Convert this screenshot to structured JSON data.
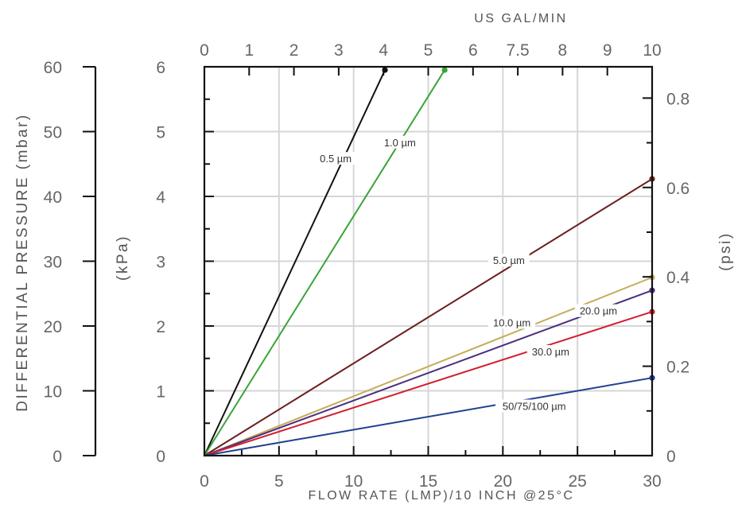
{
  "chart_data": {
    "type": "line",
    "x_bottom": {
      "label": "FLOW RATE (LMP)/10 INCH @25°C",
      "range": [
        0,
        30
      ],
      "ticks": [
        "0",
        "5",
        "10",
        "15",
        "20",
        "25",
        "30"
      ]
    },
    "x_top": {
      "label": "US GAL/MIN",
      "ticks": [
        "0",
        "1",
        "2",
        "3",
        "4",
        "5",
        "6",
        "7.5",
        "8",
        "9",
        "10"
      ]
    },
    "y_left_outer": {
      "label": "DIFFERENTIAL PRESSURE (mbar)",
      "range": [
        0,
        60
      ],
      "ticks": [
        "0",
        "10",
        "20",
        "30",
        "40",
        "50",
        "60"
      ]
    },
    "y_left_inner": {
      "label": "(kPa)",
      "range": [
        0,
        6
      ],
      "ticks": [
        "0",
        "1",
        "2",
        "3",
        "4",
        "5",
        "6"
      ]
    },
    "y_right": {
      "label": "(psi)",
      "ticks": [
        {
          "label": "0",
          "value": 0
        },
        {
          "label": "0.2",
          "value": 0.2
        },
        {
          "label": "0.4",
          "value": 0.4
        },
        {
          "label": "0.6",
          "value": 0.6
        },
        {
          "label": "0.8",
          "value": 0.8
        }
      ]
    },
    "grid": true,
    "series": [
      {
        "name": "0.5 µm",
        "color": "#111111",
        "x": [
          0,
          12.1
        ],
        "y": [
          0,
          5.95
        ],
        "label_at": [
          8.8,
          4.55
        ]
      },
      {
        "name": "1.0 µm",
        "color": "#3aa43a",
        "x": [
          0,
          16.1
        ],
        "y": [
          0,
          5.95
        ],
        "label_at": [
          13.1,
          4.8
        ]
      },
      {
        "name": "5.0 µm",
        "color": "#6b1f1f",
        "x": [
          0,
          30
        ],
        "y": [
          0,
          4.27
        ],
        "label_at": [
          20.4,
          2.98
        ]
      },
      {
        "name": "10.0 µm",
        "color": "#c4ad5a",
        "x": [
          0,
          30
        ],
        "y": [
          0,
          2.75
        ],
        "label_at": [
          20.6,
          2.02
        ]
      },
      {
        "name": "20.0 µm",
        "color": "#4b2e7d",
        "x": [
          0,
          30
        ],
        "y": [
          0,
          2.55
        ],
        "label_at": [
          26.4,
          2.2
        ]
      },
      {
        "name": "30.0 µm",
        "color": "#d22030",
        "x": [
          0,
          30
        ],
        "y": [
          0,
          2.22
        ],
        "label_at": [
          23.2,
          1.57
        ]
      },
      {
        "name": "50/75/100 µm",
        "color": "#1f3f8f",
        "x": [
          0,
          30
        ],
        "y": [
          0,
          1.2
        ],
        "label_at": [
          22.1,
          0.73
        ]
      }
    ]
  }
}
